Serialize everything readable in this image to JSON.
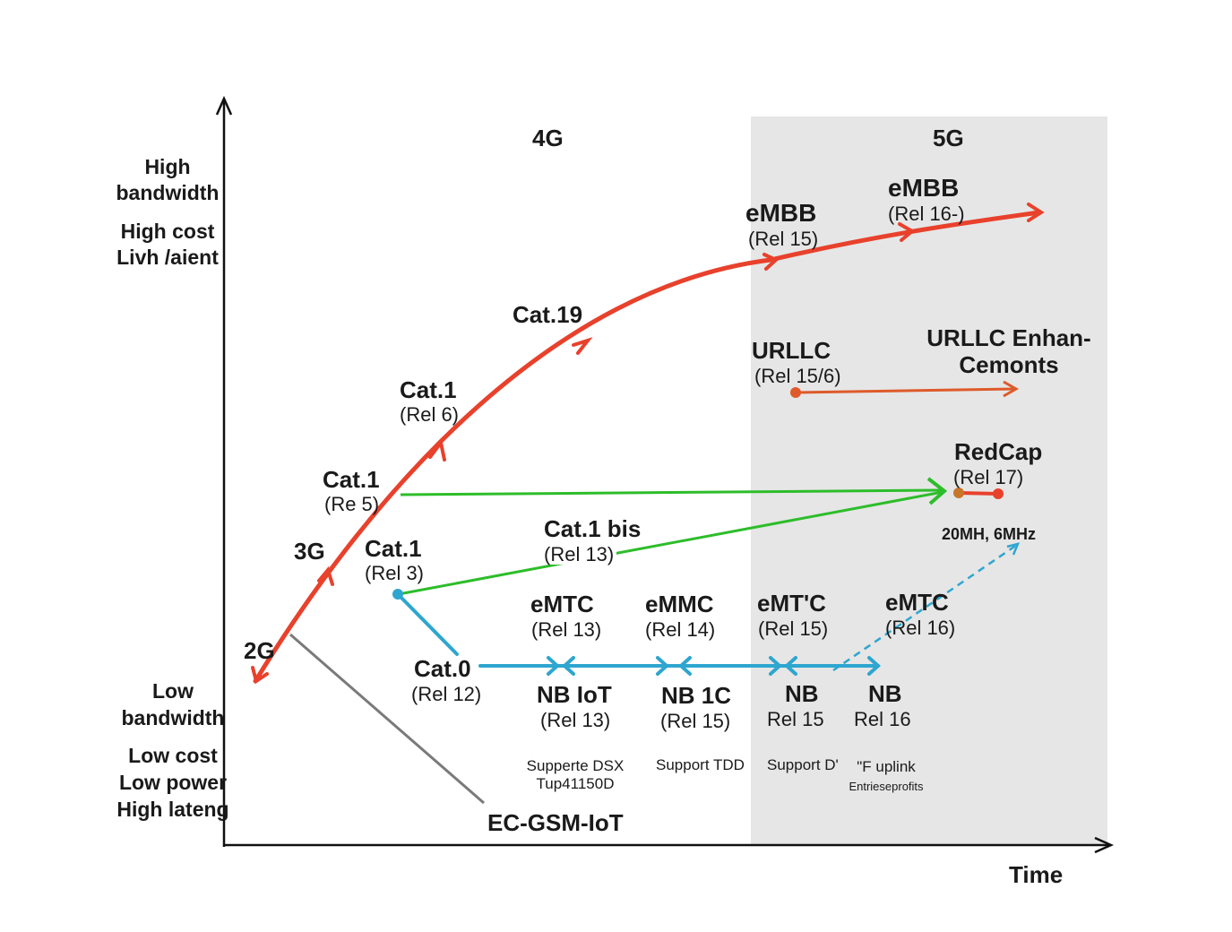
{
  "eras": {
    "left": "4G",
    "right": "5G"
  },
  "axes": {
    "y_top": [
      "High",
      "bandwidth",
      "High cost",
      "Livh /aient"
    ],
    "y_bottom": [
      "Low",
      "bandwidth",
      "Low cost",
      "Low power",
      "High lateng"
    ],
    "x": "Time"
  },
  "nodes": {
    "g2": "2G",
    "g3": "3G",
    "cat1_rel5": {
      "title": "Cat.1",
      "sub": "(Re 5)"
    },
    "cat1_rel6": {
      "title": "Cat.1",
      "sub": "(Rel 6)"
    },
    "cat19": "Cat.19",
    "embb15": {
      "title": "eMBB",
      "sub": "(Rel 15)"
    },
    "embb16": {
      "title": "eMBB",
      "sub": "(Rel 16-)"
    },
    "urllc": {
      "title": "URLLC",
      "sub": "(Rel 15/6)"
    },
    "urllc_enh": [
      "URLLC Enhan-",
      "Cemonts"
    ],
    "redcap": {
      "title": "RedCap",
      "sub": "(Rel 17)",
      "note": "20MH, 6MHz"
    },
    "cat1_rel3": {
      "title": "Cat.1",
      "sub": "(Rel 3)"
    },
    "cat1bis": {
      "title": "Cat.1 bis",
      "sub": "(Rel 13)"
    },
    "cat0": {
      "title": "Cat.0",
      "sub": "(Rel 12)"
    },
    "emtc13": {
      "title": "eMTC",
      "sub": "(Rel 13)"
    },
    "emmc14": {
      "title": "eMMC",
      "sub": "(Rel 14)"
    },
    "emtc15": {
      "title": "eMT'C",
      "sub": "(Rel 15)"
    },
    "emtc16": {
      "title": "eMTC",
      "sub": "(Rel 16)"
    },
    "nbiot13": {
      "title": "NB IoT",
      "sub": "(Rel 13)",
      "note": [
        "Supperte DSX",
        "Tup41150D"
      ]
    },
    "nb1c15": {
      "title": "NB 1C",
      "sub": "(Rel 15)",
      "note": [
        "Support TDD"
      ]
    },
    "nb15": {
      "title": "NB",
      "sub": "Rel 15",
      "note": [
        "Support D'"
      ]
    },
    "nb16": {
      "title": "NB",
      "sub": "Rel 16",
      "note": [
        "\"F uplink",
        "Entrieseprofits"
      ]
    },
    "ecgsm": "EC-GSM-IoT"
  },
  "colors": {
    "red": "#e8412c",
    "orange": "#de5a2a",
    "green": "#2dbd2a",
    "blue": "#2ea6cf",
    "gray": "#7a7a7a",
    "shade": "#e6e6e6"
  }
}
